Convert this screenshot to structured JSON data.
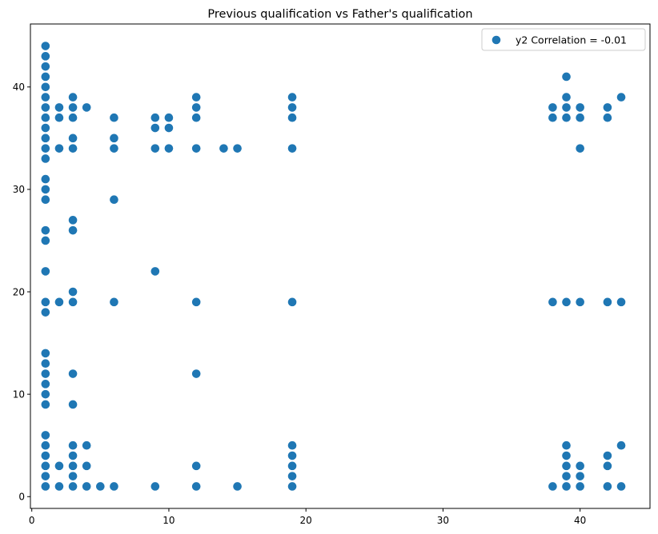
{
  "chart_data": {
    "type": "scatter",
    "title": "Previous qualification vs Father's qualification",
    "xlabel": "",
    "ylabel": "",
    "xlim": [
      -0.1,
      45.1
    ],
    "ylim": [
      -1.15,
      46.15
    ],
    "xticks": [
      0,
      10,
      20,
      30,
      40
    ],
    "yticks": [
      0,
      10,
      20,
      30,
      40
    ],
    "grid": false,
    "legend_position": "top-right",
    "colors": {
      "marker": "#1f77b4",
      "axis": "#000000",
      "legend_border": "#cccccc"
    },
    "series": [
      {
        "name": "y2 Correlation = -0.01",
        "points": [
          [
            1,
            44
          ],
          [
            1,
            43
          ],
          [
            1,
            42
          ],
          [
            1,
            41
          ],
          [
            1,
            40
          ],
          [
            1,
            39
          ],
          [
            1,
            38
          ],
          [
            1,
            37
          ],
          [
            1,
            36
          ],
          [
            1,
            35
          ],
          [
            1,
            34
          ],
          [
            1,
            33
          ],
          [
            1,
            31
          ],
          [
            1,
            30
          ],
          [
            1,
            29
          ],
          [
            1,
            26
          ],
          [
            1,
            25
          ],
          [
            1,
            22
          ],
          [
            1,
            19
          ],
          [
            1,
            18
          ],
          [
            1,
            14
          ],
          [
            1,
            13
          ],
          [
            1,
            12
          ],
          [
            1,
            11
          ],
          [
            1,
            10
          ],
          [
            1,
            9
          ],
          [
            1,
            6
          ],
          [
            1,
            5
          ],
          [
            1,
            4
          ],
          [
            1,
            3
          ],
          [
            1,
            2
          ],
          [
            1,
            1
          ],
          [
            2,
            38
          ],
          [
            2,
            37
          ],
          [
            2,
            34
          ],
          [
            2,
            19
          ],
          [
            2,
            3
          ],
          [
            2,
            1
          ],
          [
            3,
            39
          ],
          [
            3,
            38
          ],
          [
            3,
            37
          ],
          [
            3,
            35
          ],
          [
            3,
            34
          ],
          [
            3,
            27
          ],
          [
            3,
            26
          ],
          [
            3,
            20
          ],
          [
            3,
            19
          ],
          [
            3,
            12
          ],
          [
            3,
            9
          ],
          [
            3,
            5
          ],
          [
            3,
            4
          ],
          [
            3,
            3
          ],
          [
            3,
            2
          ],
          [
            3,
            1
          ],
          [
            4,
            38
          ],
          [
            4,
            5
          ],
          [
            4,
            3
          ],
          [
            4,
            1
          ],
          [
            5,
            1
          ],
          [
            6,
            37
          ],
          [
            6,
            35
          ],
          [
            6,
            34
          ],
          [
            6,
            29
          ],
          [
            6,
            19
          ],
          [
            6,
            1
          ],
          [
            9,
            37
          ],
          [
            9,
            36
          ],
          [
            9,
            34
          ],
          [
            9,
            22
          ],
          [
            9,
            1
          ],
          [
            10,
            37
          ],
          [
            10,
            36
          ],
          [
            10,
            34
          ],
          [
            12,
            39
          ],
          [
            12,
            38
          ],
          [
            12,
            37
          ],
          [
            12,
            34
          ],
          [
            12,
            19
          ],
          [
            12,
            12
          ],
          [
            12,
            3
          ],
          [
            12,
            1
          ],
          [
            14,
            34
          ],
          [
            15,
            34
          ],
          [
            15,
            1
          ],
          [
            19,
            39
          ],
          [
            19,
            38
          ],
          [
            19,
            37
          ],
          [
            19,
            34
          ],
          [
            19,
            19
          ],
          [
            19,
            5
          ],
          [
            19,
            4
          ],
          [
            19,
            3
          ],
          [
            19,
            2
          ],
          [
            19,
            1
          ],
          [
            38,
            38
          ],
          [
            38,
            37
          ],
          [
            38,
            19
          ],
          [
            38,
            1
          ],
          [
            39,
            41
          ],
          [
            39,
            39
          ],
          [
            39,
            38
          ],
          [
            39,
            37
          ],
          [
            39,
            19
          ],
          [
            39,
            5
          ],
          [
            39,
            4
          ],
          [
            39,
            3
          ],
          [
            39,
            2
          ],
          [
            39,
            1
          ],
          [
            40,
            38
          ],
          [
            40,
            37
          ],
          [
            40,
            34
          ],
          [
            40,
            19
          ],
          [
            40,
            3
          ],
          [
            40,
            2
          ],
          [
            40,
            1
          ],
          [
            42,
            38
          ],
          [
            42,
            37
          ],
          [
            42,
            19
          ],
          [
            42,
            4
          ],
          [
            42,
            3
          ],
          [
            42,
            1
          ],
          [
            43,
            39
          ],
          [
            43,
            19
          ],
          [
            43,
            5
          ],
          [
            43,
            1
          ]
        ]
      }
    ]
  }
}
